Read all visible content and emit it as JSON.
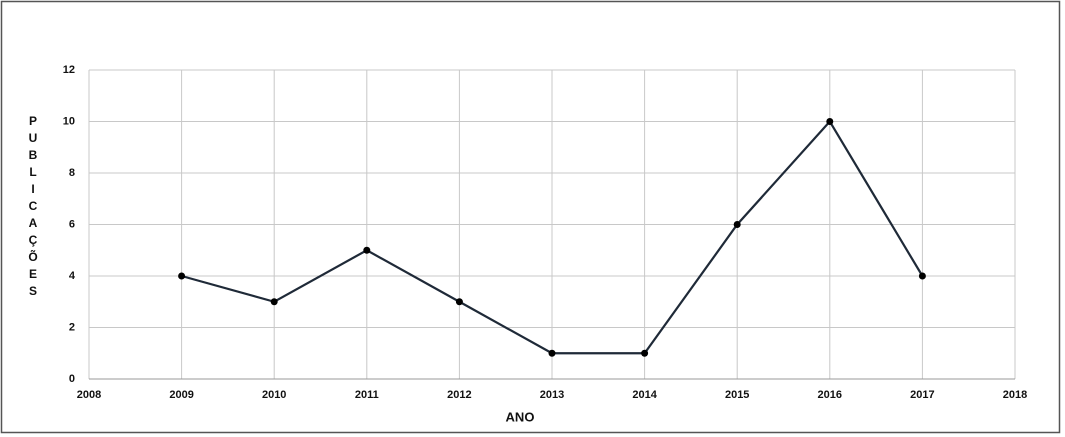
{
  "chart_data": {
    "type": "line",
    "x_label": "ANO",
    "y_label": "PUBLICAÇÕES",
    "x": [
      2009,
      2010,
      2011,
      2012,
      2013,
      2014,
      2015,
      2016,
      2017
    ],
    "series": [
      {
        "color": "#1f2a38",
        "values": [
          4,
          3,
          5,
          3,
          1,
          1,
          6,
          10,
          4
        ]
      }
    ],
    "xlim": [
      2008,
      2018
    ],
    "xticks": [
      2008,
      2009,
      2010,
      2011,
      2012,
      2013,
      2014,
      2015,
      2016,
      2017,
      2018
    ],
    "ylim": [
      0,
      12
    ],
    "yticks": [
      0,
      2,
      4,
      6,
      8,
      10,
      12
    ],
    "grid": true
  }
}
